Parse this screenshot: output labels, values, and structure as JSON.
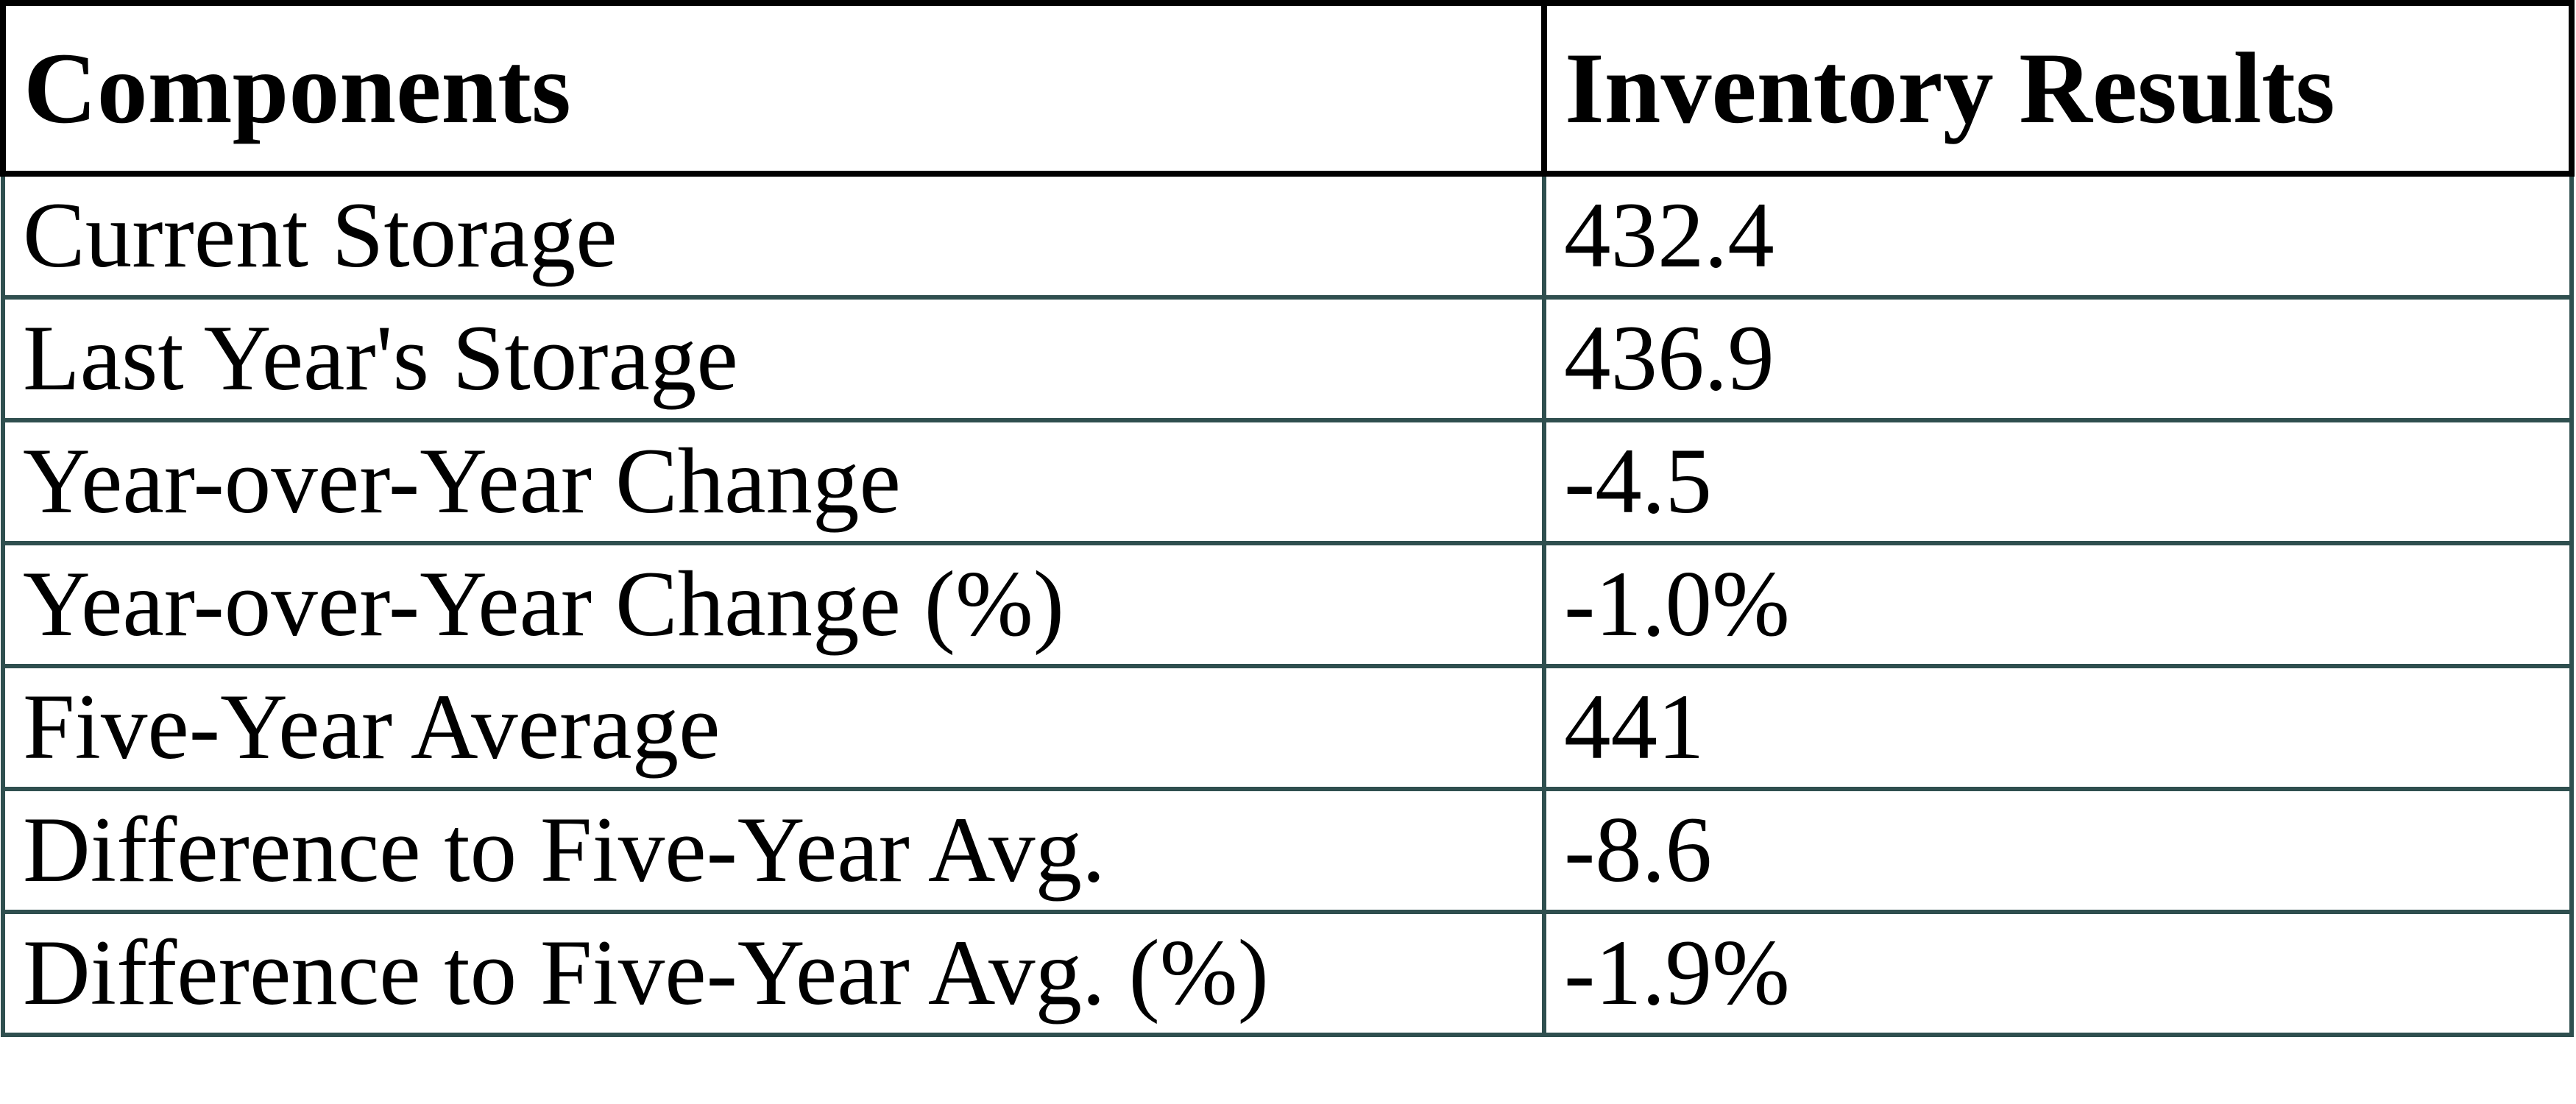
{
  "chart_data": {
    "type": "table",
    "columns": [
      "Components",
      "Inventory Results"
    ],
    "rows": [
      [
        "Current Storage",
        "432.4"
      ],
      [
        "Last Year's Storage",
        "436.9"
      ],
      [
        "Year-over-Year Change",
        "-4.5"
      ],
      [
        "Year-over-Year Change (%)",
        "-1.0%"
      ],
      [
        "Five-Year Average",
        "441"
      ],
      [
        "Difference to Five-Year Avg.",
        "-8.6"
      ],
      [
        "Difference to Five-Year Avg. (%)",
        "-1.9%"
      ]
    ],
    "layout": {
      "header_border_color": "#000000",
      "body_border_color": "#2F4F4F",
      "text_color": "#000000",
      "background_color": "#ffffff",
      "header_bold": true,
      "grid": "on"
    }
  }
}
